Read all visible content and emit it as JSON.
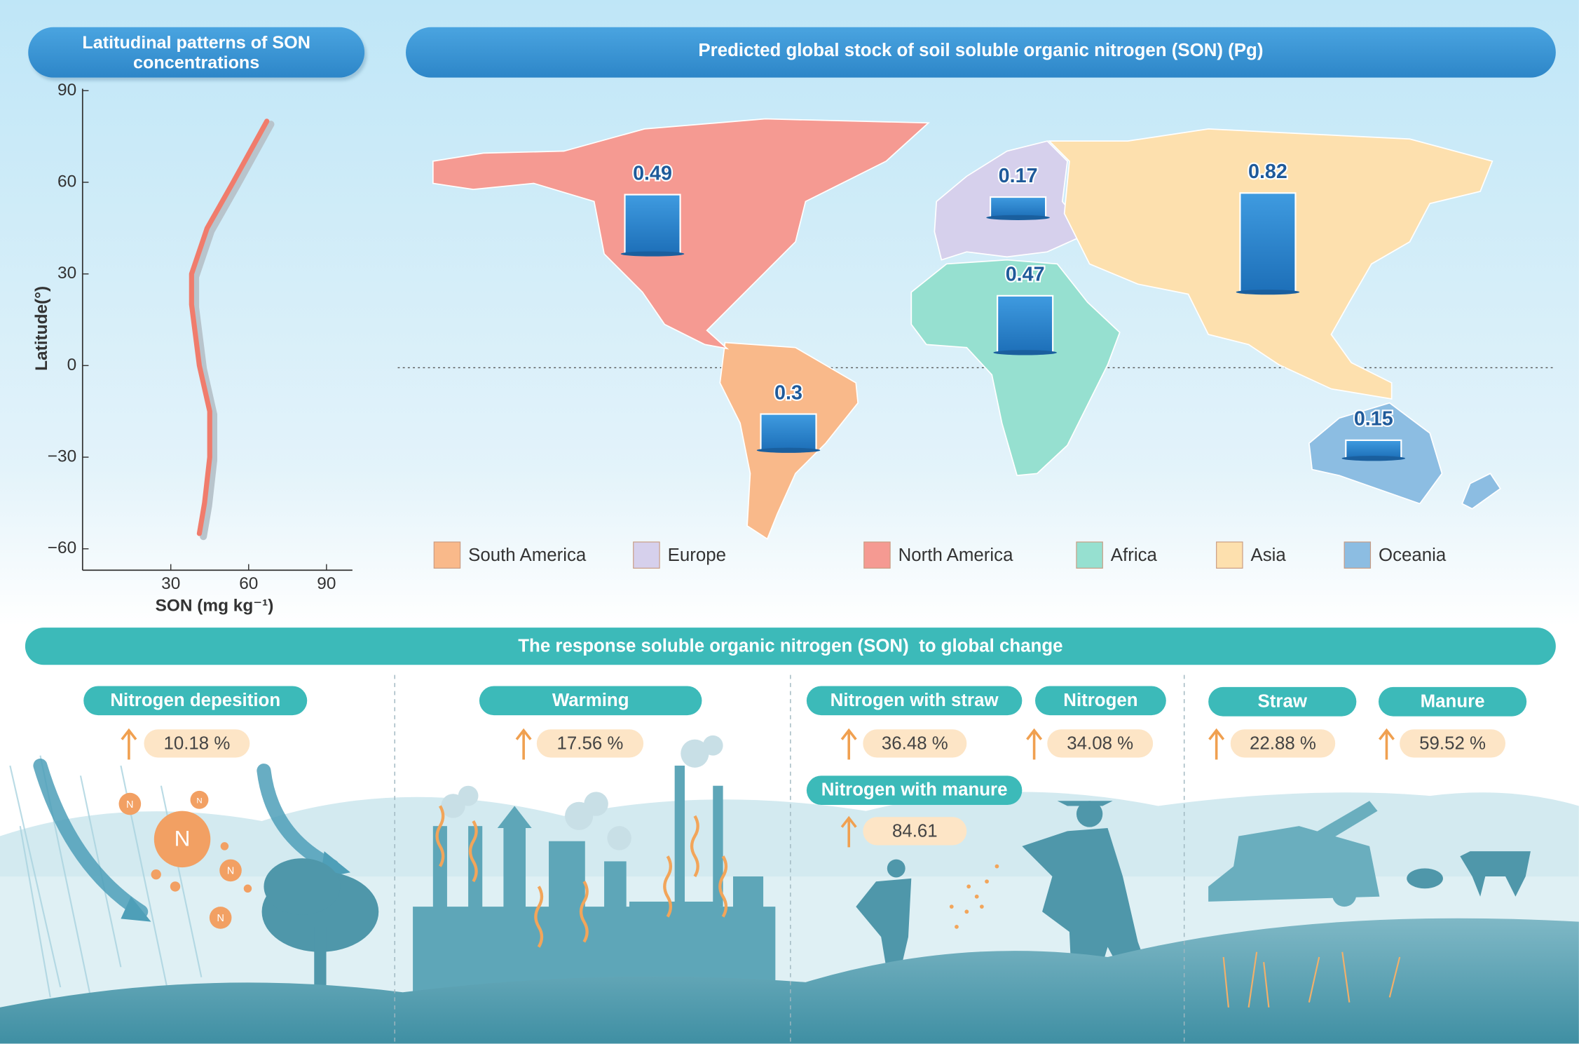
{
  "chart_data": [
    {
      "type": "line",
      "title": "Latitudinal patterns of SON concentrations",
      "x_label": "SON (mg kg⁻¹)",
      "y_label": "Latitude(°)",
      "x": [
        41,
        43,
        45,
        45,
        41,
        38,
        38,
        44,
        54,
        67
      ],
      "series": [
        {
          "color": "#f07c6c",
          "values": [
            -55,
            -45,
            -30,
            -15,
            0,
            20,
            30,
            45,
            60,
            80
          ]
        }
      ],
      "xlim": [
        -4,
        100
      ],
      "xticks": [
        30,
        60,
        90
      ],
      "ylim": [
        -67,
        90
      ],
      "yticks": [
        90,
        60,
        30,
        0,
        {
          "value": -30,
          "label": "−30"
        },
        {
          "value": -60,
          "label": "−60"
        }
      ]
    },
    {
      "type": "bar",
      "title": "Predicted global stock of soil soluble organic nitrogen (SON) (Pg)",
      "categories": [
        "South America",
        "Europe",
        "North America",
        "Africa",
        "Asia",
        "Oceania"
      ],
      "values": [
        0.3,
        0.17,
        0.49,
        0.47,
        0.82,
        0.15
      ],
      "colors": [
        "#f9b98a",
        "#d6d0ec",
        "#f59a92",
        "#96e0d0",
        "#fde0ae",
        "#8cbde2"
      ]
    }
  ],
  "response": {
    "title": "The response soluble organic nitrogen (SON)  to global change",
    "symbol": "N",
    "items": [
      {
        "label": "Nitrogen depesition",
        "value": "10.18 %"
      },
      {
        "label": "Warming",
        "value": "17.56 %"
      },
      {
        "label": "Nitrogen with straw",
        "value": "36.48 %"
      },
      {
        "label": "Nitrogen",
        "value": "34.08 %"
      },
      {
        "label": "Nitrogen with manure",
        "value": "84.61"
      },
      {
        "label": "Straw",
        "value": "22.88 %"
      },
      {
        "label": "Manure",
        "value": "59.52 %"
      }
    ]
  }
}
